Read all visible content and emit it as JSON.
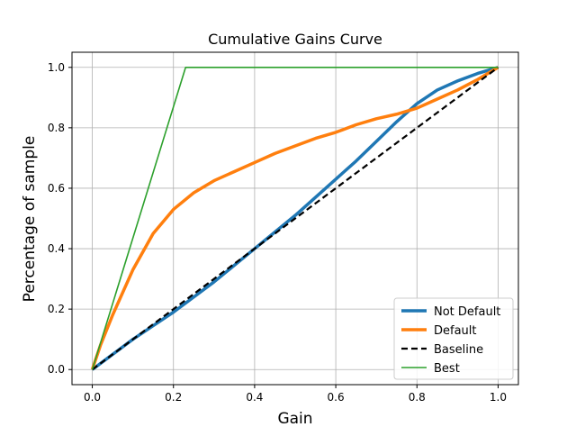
{
  "chart_data": {
    "type": "line",
    "title": "Cumulative Gains Curve",
    "xlabel": "Gain",
    "ylabel": "Percentage of sample",
    "xlim": [
      -0.05,
      1.05
    ],
    "ylim": [
      -0.05,
      1.05
    ],
    "xticks": [
      0.0,
      0.2,
      0.4,
      0.6,
      0.8,
      1.0
    ],
    "yticks": [
      0.0,
      0.2,
      0.4,
      0.6,
      0.8,
      1.0
    ],
    "xtick_labels": [
      "0.0",
      "0.2",
      "0.4",
      "0.6",
      "0.8",
      "1.0"
    ],
    "ytick_labels": [
      "0.0",
      "0.2",
      "0.4",
      "0.6",
      "0.8",
      "1.0"
    ],
    "grid": true,
    "legend_position": "lower-right",
    "series": [
      {
        "name": "Not Default",
        "color": "#1f77b4",
        "style": "solid",
        "x": [
          0.0,
          0.05,
          0.1,
          0.15,
          0.2,
          0.25,
          0.3,
          0.35,
          0.4,
          0.45,
          0.5,
          0.55,
          0.6,
          0.65,
          0.7,
          0.75,
          0.8,
          0.85,
          0.9,
          0.95,
          1.0
        ],
        "y": [
          0.0,
          0.05,
          0.1,
          0.145,
          0.19,
          0.24,
          0.29,
          0.345,
          0.4,
          0.455,
          0.51,
          0.57,
          0.63,
          0.69,
          0.755,
          0.82,
          0.88,
          0.925,
          0.955,
          0.98,
          1.0
        ]
      },
      {
        "name": "Default",
        "color": "#ff7f0e",
        "style": "solid",
        "x": [
          0.0,
          0.02,
          0.05,
          0.1,
          0.15,
          0.2,
          0.25,
          0.3,
          0.35,
          0.4,
          0.45,
          0.5,
          0.55,
          0.6,
          0.65,
          0.7,
          0.75,
          0.8,
          0.85,
          0.9,
          0.95,
          1.0
        ],
        "y": [
          0.0,
          0.08,
          0.18,
          0.33,
          0.45,
          0.53,
          0.585,
          0.625,
          0.655,
          0.685,
          0.715,
          0.74,
          0.765,
          0.785,
          0.81,
          0.83,
          0.845,
          0.865,
          0.895,
          0.925,
          0.96,
          1.0
        ]
      },
      {
        "name": "Baseline",
        "color": "#000000",
        "style": "dashed",
        "x": [
          0.0,
          1.0
        ],
        "y": [
          0.0,
          1.0
        ]
      },
      {
        "name": "Best",
        "color": "#2ca02c",
        "style": "solid",
        "x": [
          0.0,
          0.23,
          1.0
        ],
        "y": [
          0.0,
          1.0,
          1.0
        ]
      }
    ]
  }
}
